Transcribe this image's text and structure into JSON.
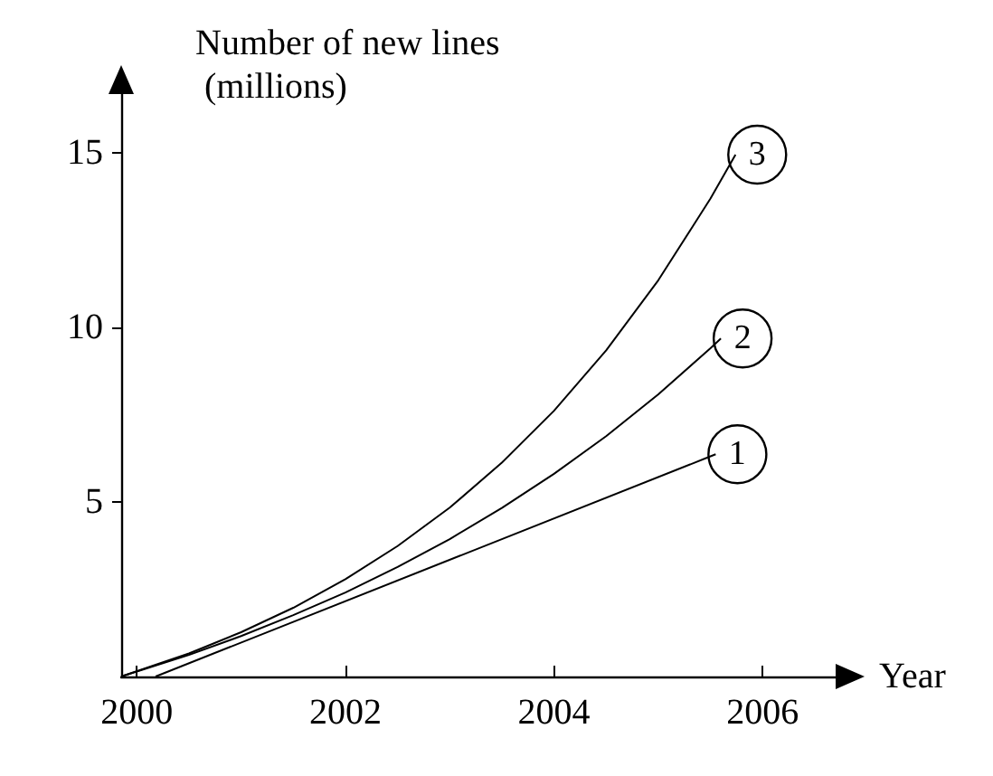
{
  "chart_data": {
    "type": "line",
    "xlabel": "Year",
    "ylabel": "Number of new lines (millions)",
    "xlim": [
      1999.85,
      2006.7
    ],
    "xticks": [
      2000,
      2002,
      2004,
      2006
    ],
    "ylim": [
      0,
      16.8
    ],
    "yticks": [
      5,
      10,
      15
    ],
    "grid": false,
    "legend": false,
    "marker": "none",
    "line_style": "solid",
    "series": [
      {
        "name": "1",
        "color": "#000000",
        "x": [
          2000.18,
          2005.55
        ],
        "values": [
          0,
          6.37
        ]
      },
      {
        "name": "2",
        "color": "#000000",
        "x": [
          1999.85,
          2000.5,
          2001,
          2001.5,
          2002,
          2002.5,
          2003,
          2003.5,
          2004,
          2004.5,
          2005,
          2005.5,
          2005.6
        ],
        "values": [
          0,
          0.62,
          1.16,
          1.76,
          2.41,
          3.14,
          3.94,
          4.83,
          5.81,
          6.89,
          8.09,
          9.41,
          9.69
        ]
      },
      {
        "name": "3",
        "color": "#000000",
        "x": [
          1999.85,
          2000.5,
          2001,
          2001.5,
          2002,
          2002.5,
          2003,
          2003.5,
          2004,
          2004.5,
          2005,
          2005.5,
          2005.74
        ],
        "values": [
          0,
          0.66,
          1.27,
          1.97,
          2.79,
          3.74,
          4.84,
          6.13,
          7.62,
          9.35,
          11.36,
          13.7,
          14.96
        ]
      }
    ]
  }
}
